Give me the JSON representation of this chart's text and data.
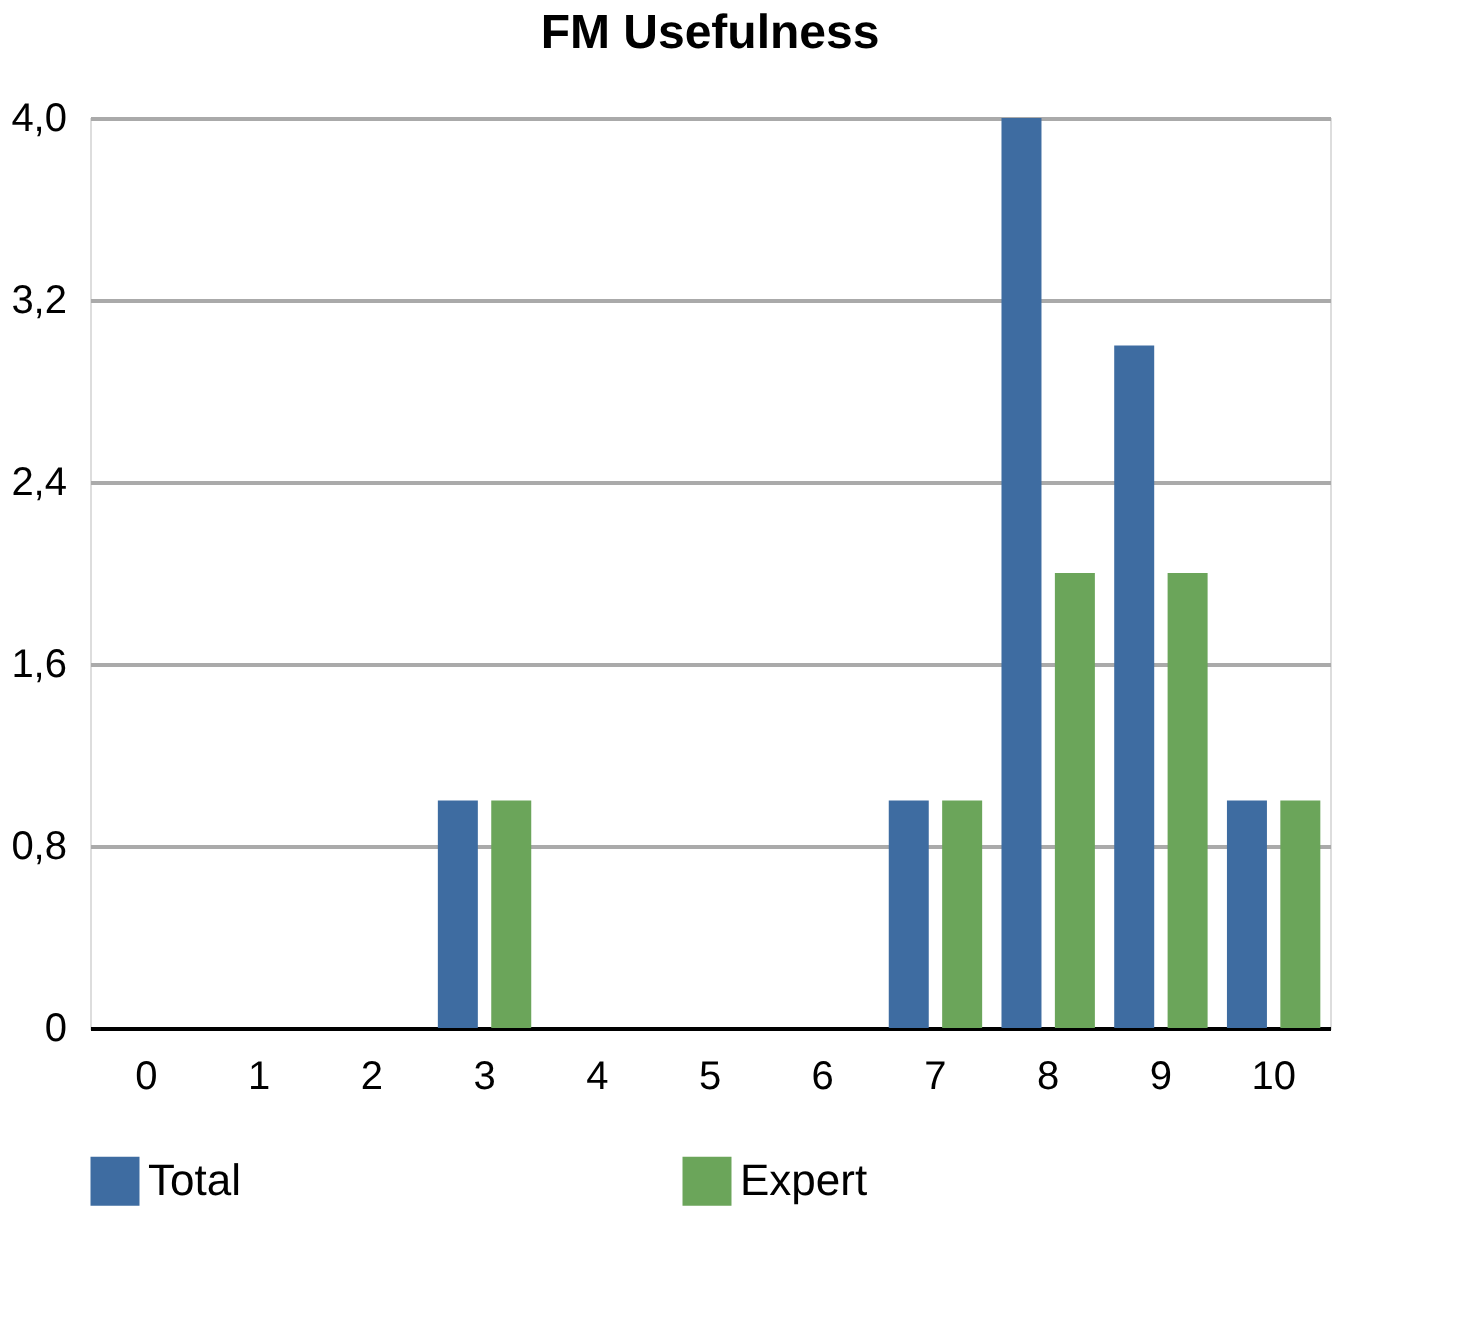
{
  "chart_data": {
    "type": "bar",
    "title": "FM Usefulness",
    "categories": [
      "0",
      "1",
      "2",
      "3",
      "4",
      "5",
      "6",
      "7",
      "8",
      "9",
      "10"
    ],
    "series": [
      {
        "name": "Total",
        "color": "#3e6ca1",
        "values": [
          0,
          0,
          0,
          1,
          0,
          0,
          0,
          1,
          4,
          3,
          1
        ]
      },
      {
        "name": "Expert",
        "color": "#6ba55a",
        "values": [
          0,
          0,
          0,
          1,
          0,
          0,
          0,
          1,
          2,
          2,
          1
        ]
      }
    ],
    "ylim": [
      0,
      4
    ],
    "yticks": [
      0,
      {
        "value": 0.8,
        "label": "0,8"
      },
      {
        "value": 1.6,
        "label": "1,6"
      },
      {
        "value": 2.4,
        "label": "2,4"
      },
      {
        "value": 3.2,
        "label": "3,2"
      },
      {
        "value": 4,
        "label": "4,0"
      }
    ],
    "grid": "y",
    "legend": "bottom"
  }
}
